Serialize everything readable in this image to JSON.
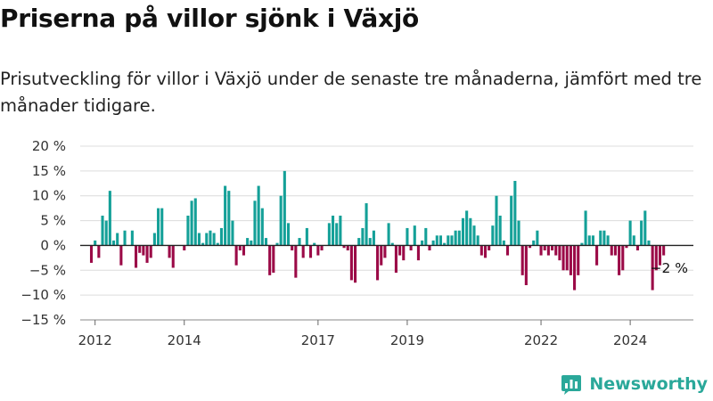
{
  "title": "Priserna på villor sjönk i Växjö",
  "subtitle": "Prisutveckling för villor i Växjö under de senaste tre månaderna, jämfört med tre månader tidigare.",
  "brand": {
    "name": "Newsworthy",
    "icon": "newsworthy-logo-icon"
  },
  "colors": {
    "positive": "#14a098",
    "negative": "#9b0a47",
    "zero_line": "#222222",
    "grid": "#dcdcdc"
  },
  "chart_data": {
    "type": "bar",
    "title": "Priserna på villor sjönk i Växjö",
    "subtitle": "Prisutveckling för villor i Växjö under de senaste tre månaderna, jämfört med tre månader tidigare.",
    "xlabel": "",
    "ylabel": "",
    "ylim": [
      -15,
      20
    ],
    "y_ticks": [
      20,
      15,
      10,
      5,
      0,
      -5,
      -10,
      -15
    ],
    "y_tick_labels": [
      "20 %",
      "15 %",
      "10 %",
      "5 %",
      "0 %",
      "−5 %",
      "−10 %",
      "−15 %"
    ],
    "x_range": [
      "2011-09",
      "2025-06"
    ],
    "x_ticks": [
      {
        "date": "2012-01",
        "label": "2012"
      },
      {
        "date": "2014-01",
        "label": "2014"
      },
      {
        "date": "2017-01",
        "label": "2017"
      },
      {
        "date": "2019-01",
        "label": "2019"
      },
      {
        "date": "2022-01",
        "label": "2022"
      },
      {
        "date": "2024-01",
        "label": "2024"
      }
    ],
    "grid": true,
    "annotation": {
      "date": "2024-09",
      "text": "−2 %"
    },
    "series": [
      {
        "values": [
          {
            "date": "2011-12",
            "value": -3.5
          },
          {
            "date": "2012-01",
            "value": 1
          },
          {
            "date": "2012-02",
            "value": -2.5
          },
          {
            "date": "2012-03",
            "value": 6
          },
          {
            "date": "2012-04",
            "value": 5
          },
          {
            "date": "2012-05",
            "value": 11
          },
          {
            "date": "2012-06",
            "value": 1
          },
          {
            "date": "2012-07",
            "value": 2.5
          },
          {
            "date": "2012-08",
            "value": -4
          },
          {
            "date": "2012-09",
            "value": 3
          },
          {
            "date": "2012-11",
            "value": 3
          },
          {
            "date": "2012-12",
            "value": -4.5
          },
          {
            "date": "2013-01",
            "value": -1.5
          },
          {
            "date": "2013-02",
            "value": -2
          },
          {
            "date": "2013-03",
            "value": -3.5
          },
          {
            "date": "2013-04",
            "value": -2.5
          },
          {
            "date": "2013-05",
            "value": 2.5
          },
          {
            "date": "2013-06",
            "value": 7.5
          },
          {
            "date": "2013-07",
            "value": 7.5
          },
          {
            "date": "2013-09",
            "value": -2.5
          },
          {
            "date": "2013-10",
            "value": -4.5
          },
          {
            "date": "2014-01",
            "value": -1
          },
          {
            "date": "2014-02",
            "value": 6
          },
          {
            "date": "2014-03",
            "value": 9
          },
          {
            "date": "2014-04",
            "value": 9.5
          },
          {
            "date": "2014-05",
            "value": 2.5
          },
          {
            "date": "2014-06",
            "value": 0.5
          },
          {
            "date": "2014-07",
            "value": 2.5
          },
          {
            "date": "2014-08",
            "value": 3
          },
          {
            "date": "2014-09",
            "value": 2.5
          },
          {
            "date": "2014-10",
            "value": 0.5
          },
          {
            "date": "2014-11",
            "value": 3.5
          },
          {
            "date": "2014-12",
            "value": 12
          },
          {
            "date": "2015-01",
            "value": 11
          },
          {
            "date": "2015-02",
            "value": 5
          },
          {
            "date": "2015-03",
            "value": -4
          },
          {
            "date": "2015-04",
            "value": -1
          },
          {
            "date": "2015-05",
            "value": -2
          },
          {
            "date": "2015-06",
            "value": 1.5
          },
          {
            "date": "2015-07",
            "value": 1
          },
          {
            "date": "2015-08",
            "value": 9
          },
          {
            "date": "2015-09",
            "value": 12
          },
          {
            "date": "2015-10",
            "value": 7.5
          },
          {
            "date": "2015-11",
            "value": 1.5
          },
          {
            "date": "2015-12",
            "value": -6
          },
          {
            "date": "2016-01",
            "value": -5.5
          },
          {
            "date": "2016-02",
            "value": 0.5
          },
          {
            "date": "2016-03",
            "value": 10
          },
          {
            "date": "2016-04",
            "value": 15
          },
          {
            "date": "2016-05",
            "value": 4.5
          },
          {
            "date": "2016-06",
            "value": -1
          },
          {
            "date": "2016-07",
            "value": -6.5
          },
          {
            "date": "2016-08",
            "value": 1.5
          },
          {
            "date": "2016-09",
            "value": -2.5
          },
          {
            "date": "2016-10",
            "value": 3.5
          },
          {
            "date": "2016-11",
            "value": -2.5
          },
          {
            "date": "2016-12",
            "value": 0.5
          },
          {
            "date": "2017-01",
            "value": -2
          },
          {
            "date": "2017-02",
            "value": -1
          },
          {
            "date": "2017-04",
            "value": 4.5
          },
          {
            "date": "2017-05",
            "value": 6
          },
          {
            "date": "2017-06",
            "value": 4.5
          },
          {
            "date": "2017-07",
            "value": 6
          },
          {
            "date": "2017-08",
            "value": -0.5
          },
          {
            "date": "2017-09",
            "value": -1
          },
          {
            "date": "2017-10",
            "value": -7
          },
          {
            "date": "2017-11",
            "value": -7.5
          },
          {
            "date": "2017-12",
            "value": 1.5
          },
          {
            "date": "2018-01",
            "value": 3.5
          },
          {
            "date": "2018-02",
            "value": 8.5
          },
          {
            "date": "2018-03",
            "value": 1.5
          },
          {
            "date": "2018-04",
            "value": 3
          },
          {
            "date": "2018-05",
            "value": -7
          },
          {
            "date": "2018-06",
            "value": -4
          },
          {
            "date": "2018-07",
            "value": -2.5
          },
          {
            "date": "2018-08",
            "value": 4.5
          },
          {
            "date": "2018-09",
            "value": 0.5
          },
          {
            "date": "2018-10",
            "value": -5.5
          },
          {
            "date": "2018-11",
            "value": -2
          },
          {
            "date": "2018-12",
            "value": -3
          },
          {
            "date": "2019-01",
            "value": 3.5
          },
          {
            "date": "2019-02",
            "value": -1
          },
          {
            "date": "2019-03",
            "value": 4
          },
          {
            "date": "2019-04",
            "value": -3
          },
          {
            "date": "2019-05",
            "value": 1
          },
          {
            "date": "2019-06",
            "value": 3.5
          },
          {
            "date": "2019-07",
            "value": -1
          },
          {
            "date": "2019-08",
            "value": 1
          },
          {
            "date": "2019-09",
            "value": 2
          },
          {
            "date": "2019-10",
            "value": 2
          },
          {
            "date": "2019-11",
            "value": 0.5
          },
          {
            "date": "2019-12",
            "value": 2
          },
          {
            "date": "2020-01",
            "value": 2
          },
          {
            "date": "2020-02",
            "value": 3
          },
          {
            "date": "2020-03",
            "value": 3
          },
          {
            "date": "2020-04",
            "value": 5.5
          },
          {
            "date": "2020-05",
            "value": 7
          },
          {
            "date": "2020-06",
            "value": 5.5
          },
          {
            "date": "2020-07",
            "value": 4
          },
          {
            "date": "2020-08",
            "value": 2
          },
          {
            "date": "2020-09",
            "value": -2
          },
          {
            "date": "2020-10",
            "value": -2.5
          },
          {
            "date": "2020-11",
            "value": -1
          },
          {
            "date": "2020-12",
            "value": 4
          },
          {
            "date": "2021-01",
            "value": 10
          },
          {
            "date": "2021-02",
            "value": 6
          },
          {
            "date": "2021-03",
            "value": 1
          },
          {
            "date": "2021-04",
            "value": -2
          },
          {
            "date": "2021-05",
            "value": 10
          },
          {
            "date": "2021-06",
            "value": 13
          },
          {
            "date": "2021-07",
            "value": 5
          },
          {
            "date": "2021-08",
            "value": -6
          },
          {
            "date": "2021-09",
            "value": -8
          },
          {
            "date": "2021-10",
            "value": -0.5
          },
          {
            "date": "2021-11",
            "value": 1
          },
          {
            "date": "2021-12",
            "value": 3
          },
          {
            "date": "2022-01",
            "value": -2
          },
          {
            "date": "2022-02",
            "value": -1
          },
          {
            "date": "2022-03",
            "value": -2
          },
          {
            "date": "2022-04",
            "value": -1
          },
          {
            "date": "2022-05",
            "value": -2
          },
          {
            "date": "2022-06",
            "value": -3
          },
          {
            "date": "2022-07",
            "value": -5
          },
          {
            "date": "2022-08",
            "value": -5
          },
          {
            "date": "2022-09",
            "value": -6
          },
          {
            "date": "2022-10",
            "value": -9
          },
          {
            "date": "2022-11",
            "value": -6
          },
          {
            "date": "2022-12",
            "value": 0.5
          },
          {
            "date": "2023-01",
            "value": 7
          },
          {
            "date": "2023-02",
            "value": 2
          },
          {
            "date": "2023-03",
            "value": 2
          },
          {
            "date": "2023-04",
            "value": -4
          },
          {
            "date": "2023-05",
            "value": 3
          },
          {
            "date": "2023-06",
            "value": 3
          },
          {
            "date": "2023-07",
            "value": 2
          },
          {
            "date": "2023-08",
            "value": -2
          },
          {
            "date": "2023-09",
            "value": -2
          },
          {
            "date": "2023-10",
            "value": -6
          },
          {
            "date": "2023-11",
            "value": -5
          },
          {
            "date": "2023-12",
            "value": -0.5
          },
          {
            "date": "2024-01",
            "value": 5
          },
          {
            "date": "2024-02",
            "value": 2
          },
          {
            "date": "2024-03",
            "value": -1
          },
          {
            "date": "2024-04",
            "value": 5
          },
          {
            "date": "2024-05",
            "value": 7
          },
          {
            "date": "2024-06",
            "value": 1
          },
          {
            "date": "2024-07",
            "value": -9
          },
          {
            "date": "2024-08",
            "value": -5
          },
          {
            "date": "2024-09",
            "value": -4
          },
          {
            "date": "2024-10",
            "value": -2
          }
        ]
      }
    ]
  }
}
